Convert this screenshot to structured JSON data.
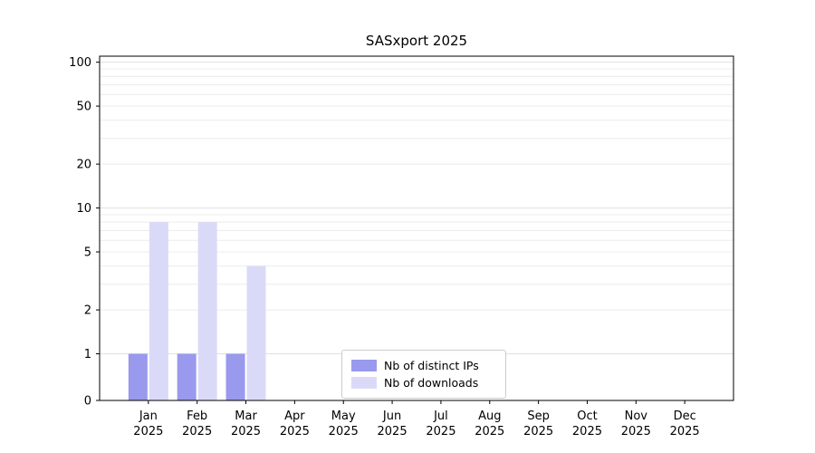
{
  "chart_data": {
    "type": "bar",
    "title": "SASxport 2025",
    "categories": [
      "Jan",
      "Feb",
      "Mar",
      "Apr",
      "May",
      "Jun",
      "Jul",
      "Aug",
      "Sep",
      "Oct",
      "Nov",
      "Dec"
    ],
    "year_label": "2025",
    "series": [
      {
        "name": "Nb of distinct IPs",
        "color": "#9999ed",
        "values": [
          1,
          1,
          1,
          0,
          0,
          0,
          0,
          0,
          0,
          0,
          0,
          0
        ]
      },
      {
        "name": "Nb of downloads",
        "color": "#dadaf8",
        "values": [
          8,
          8,
          4,
          0,
          0,
          0,
          0,
          0,
          0,
          0,
          0,
          0
        ]
      }
    ],
    "yscale": "symlog",
    "yticks": [
      0,
      1,
      2,
      5,
      10,
      20,
      50,
      100
    ],
    "ylim": [
      0,
      110
    ],
    "minor_gridlines": [
      2,
      3,
      4,
      5,
      6,
      7,
      8,
      9,
      20,
      30,
      40,
      50,
      60,
      70,
      80,
      90
    ],
    "major_gridlines": [
      1,
      10,
      100
    ],
    "grid": true,
    "legend_position": "lower-center",
    "colors": {
      "grid_minor": "#ececec",
      "grid_major": "#e0e0e0",
      "axis": "#000000",
      "legend_border": "#cccccc"
    }
  }
}
